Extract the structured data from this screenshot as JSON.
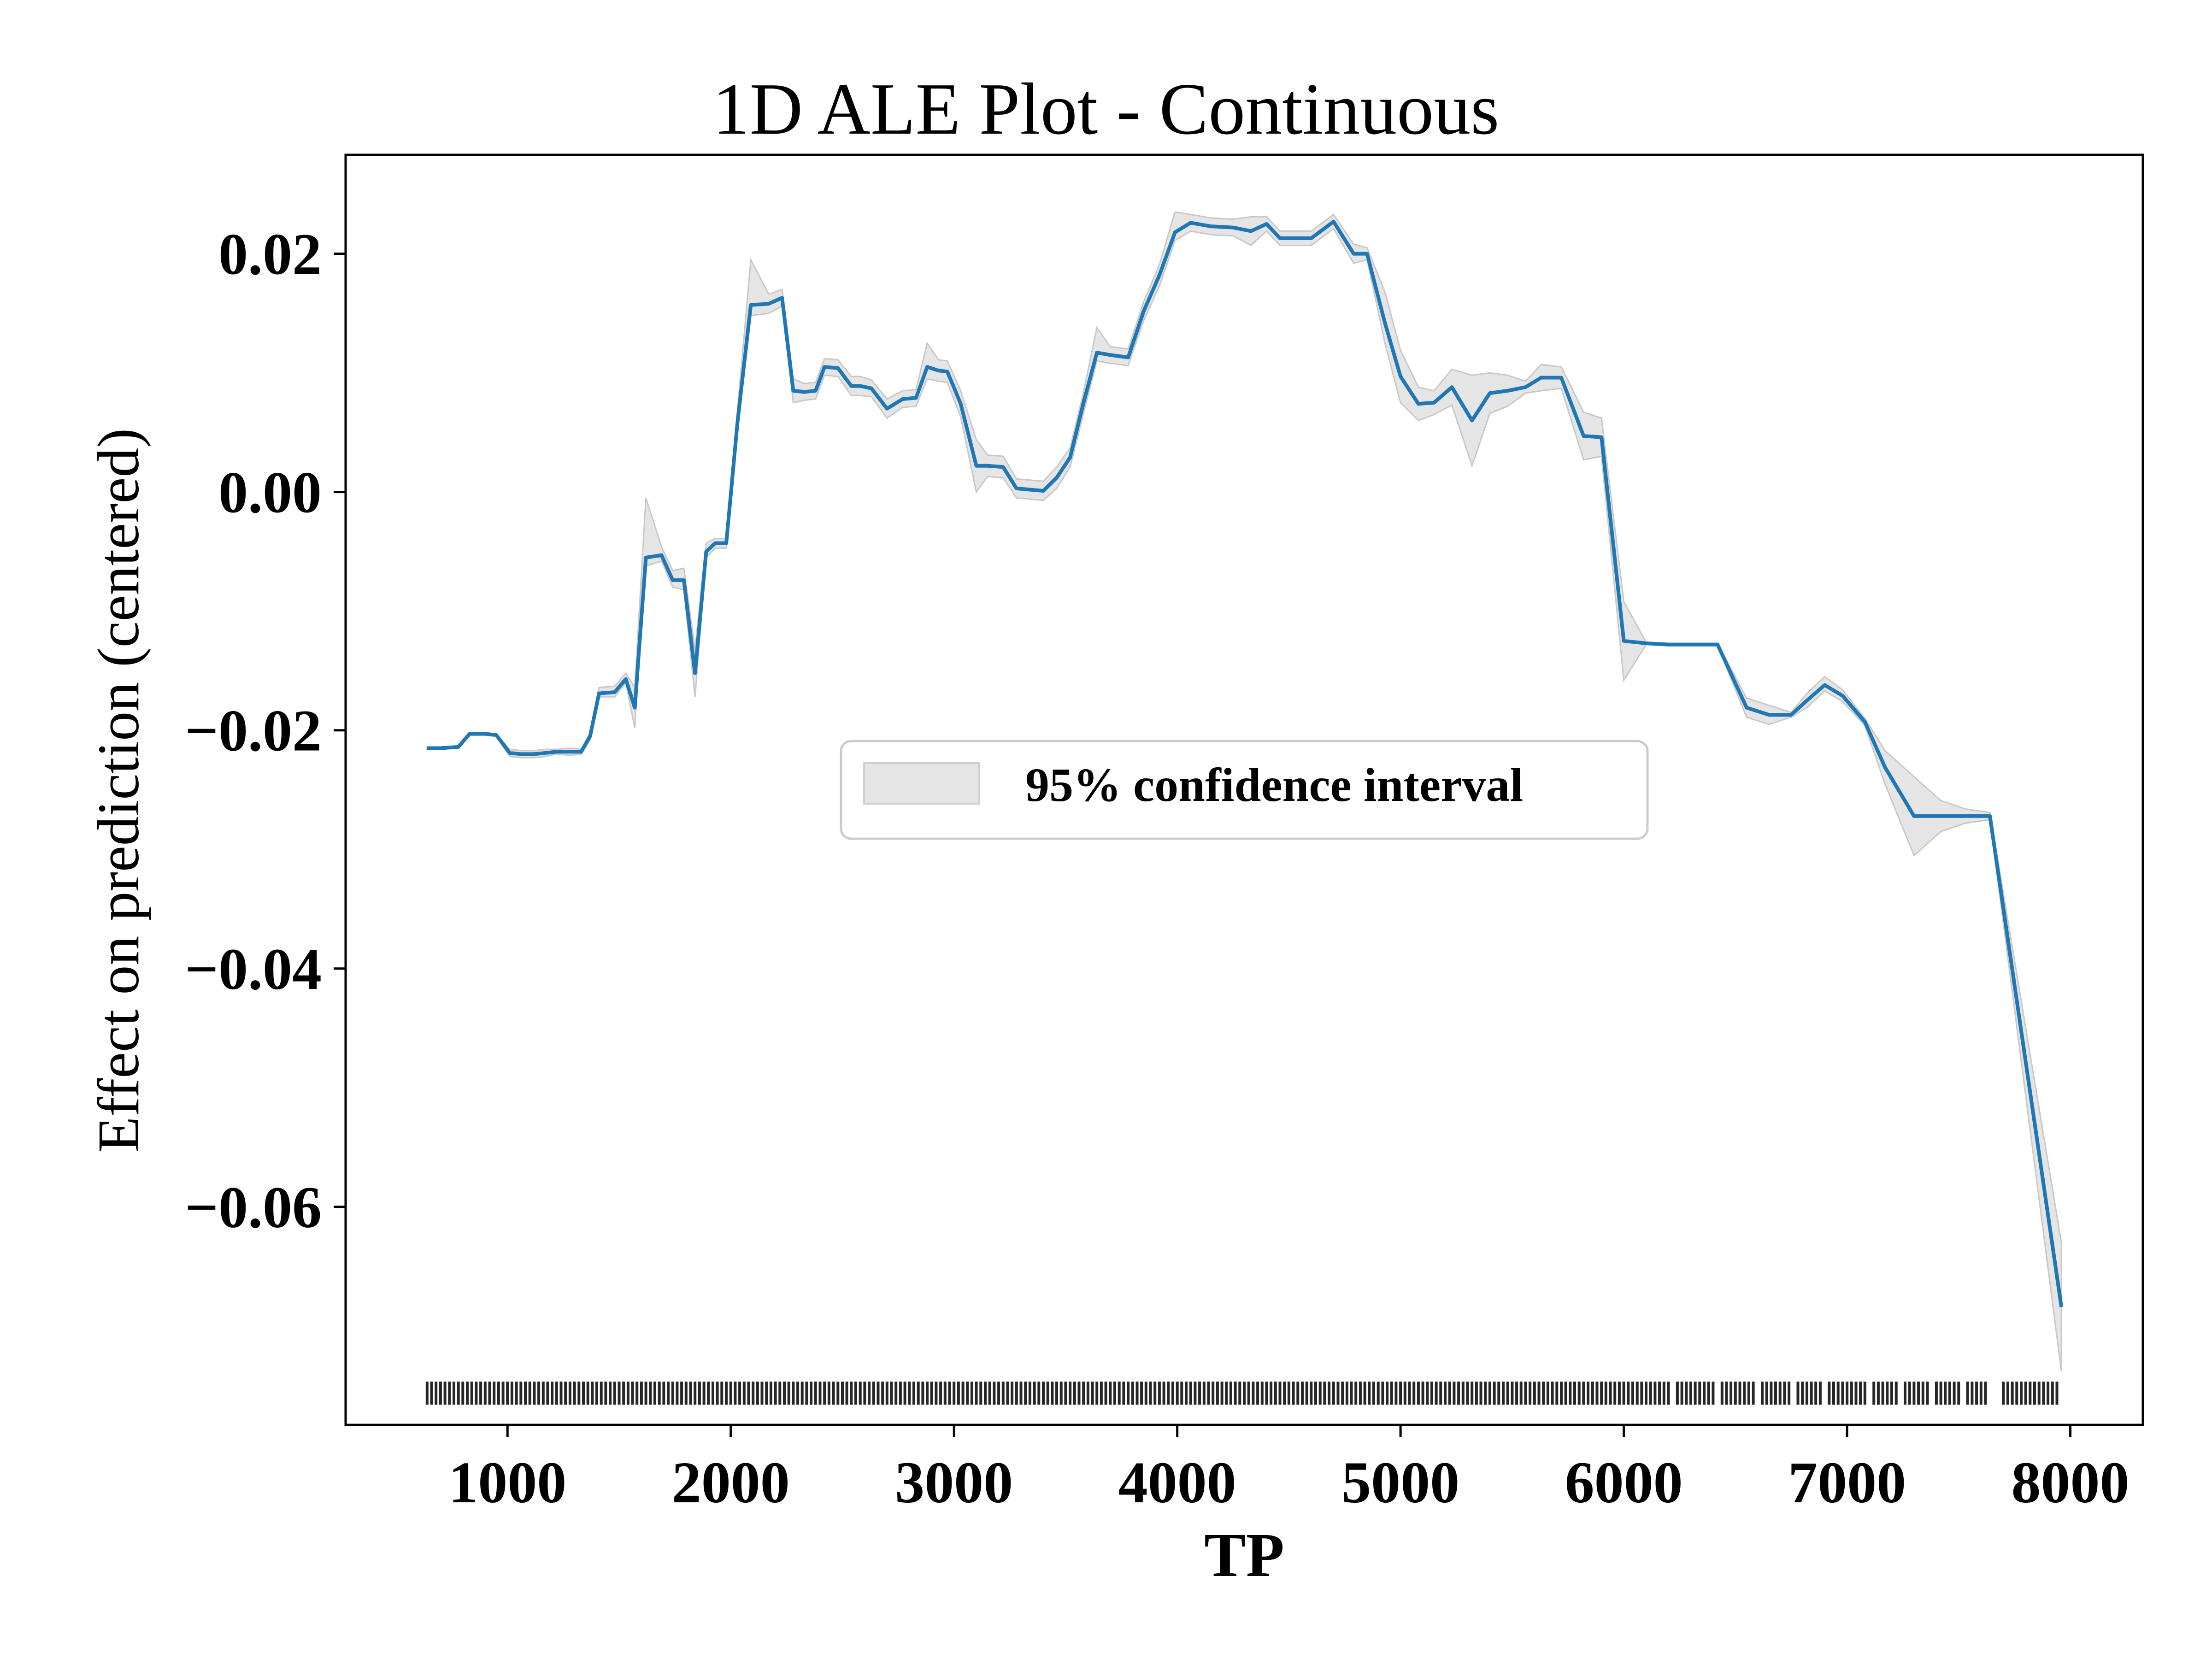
{
  "chart_data": {
    "type": "line",
    "title": "1D ALE Plot - Continuous",
    "xlabel": "TP",
    "ylabel": "Effect on prediction (centered)",
    "xlim": [
      275,
      8325
    ],
    "ylim": [
      -0.0783,
      0.0283
    ],
    "x_ticks": [
      1000,
      2000,
      3000,
      4000,
      5000,
      6000,
      7000,
      8000
    ],
    "x_tick_labels": [
      "1000",
      "2000",
      "3000",
      "4000",
      "5000",
      "6000",
      "7000",
      "8000"
    ],
    "y_ticks": [
      0.02,
      0.0,
      -0.02,
      -0.04,
      -0.06
    ],
    "y_tick_labels": [
      "0.02",
      "0.00",
      "−0.02",
      "−0.04",
      "−0.06"
    ],
    "grid": false,
    "legend": {
      "position": "center",
      "entries": [
        "95% confidence interval"
      ]
    },
    "colors": {
      "line": "#1f77b4",
      "band": "#d3d3d3",
      "rug": "#000000"
    },
    "series": [
      {
        "x": [
          640,
          700,
          780,
          830,
          900,
          950,
          1010,
          1060,
          1120,
          1170,
          1220,
          1280,
          1330,
          1370,
          1410,
          1480,
          1530,
          1570,
          1620,
          1690,
          1740,
          1790,
          1840,
          1890,
          1930,
          1980,
          2030,
          2090,
          2170,
          2230,
          2280,
          2330,
          2380,
          2420,
          2480,
          2540,
          2580,
          2630,
          2700,
          2770,
          2830,
          2880,
          2930,
          2970,
          3030,
          3100,
          3150,
          3220,
          3280,
          3340,
          3400,
          3460,
          3520,
          3580,
          3640,
          3700,
          3780,
          3850,
          3920,
          3990,
          4060,
          4150,
          4250,
          4330,
          4400,
          4460,
          4530,
          4600,
          4700,
          4790,
          4850,
          4930,
          5000,
          5080,
          5150,
          5230,
          5320,
          5400,
          5480,
          5560,
          5630,
          5720,
          5820,
          5900,
          6000,
          6100,
          6200,
          6300,
          6420,
          6550,
          6650,
          6750,
          6820,
          6900,
          6980,
          7080,
          7170,
          7300,
          7420,
          7530,
          7640,
          7960
        ],
        "y": [
          -0.0215,
          -0.0215,
          -0.0214,
          -0.0203,
          -0.0203,
          -0.0204,
          -0.0219,
          -0.022,
          -0.022,
          -0.0219,
          -0.0218,
          -0.0218,
          -0.0218,
          -0.0205,
          -0.0169,
          -0.0168,
          -0.0157,
          -0.0181,
          -0.0055,
          -0.0053,
          -0.0074,
          -0.0074,
          -0.0152,
          -0.005,
          -0.0043,
          -0.0043,
          0.0058,
          0.0157,
          0.0158,
          0.0163,
          0.0085,
          0.0084,
          0.0085,
          0.0105,
          0.0104,
          0.0089,
          0.0089,
          0.0087,
          0.007,
          0.0078,
          0.0079,
          0.0105,
          0.0102,
          0.0101,
          0.0074,
          0.0022,
          0.0022,
          0.0021,
          0.0003,
          0.0002,
          0.0001,
          0.0012,
          0.0029,
          0.0075,
          0.0117,
          0.0115,
          0.0113,
          0.0152,
          0.0182,
          0.0218,
          0.0226,
          0.0223,
          0.0222,
          0.0219,
          0.0225,
          0.0213,
          0.0213,
          0.0213,
          0.0227,
          0.02,
          0.02,
          0.0142,
          0.0097,
          0.0074,
          0.0075,
          0.0088,
          0.006,
          0.0083,
          0.0085,
          0.0088,
          0.0096,
          0.0096,
          0.0047,
          0.0046,
          -0.0125,
          -0.0127,
          -0.0128,
          -0.0128,
          -0.0128,
          -0.0181,
          -0.0187,
          -0.0187,
          -0.0175,
          -0.0162,
          -0.0171,
          -0.0193,
          -0.0231,
          -0.0272,
          -0.0272,
          -0.0272,
          -0.0272,
          -0.0684
        ],
        "lower": [
          -0.0216,
          -0.0216,
          -0.0215,
          -0.0204,
          -0.0204,
          -0.0205,
          -0.0222,
          -0.0223,
          -0.0223,
          -0.0222,
          -0.022,
          -0.0221,
          -0.022,
          -0.0208,
          -0.0172,
          -0.0172,
          -0.016,
          -0.0198,
          -0.0062,
          -0.0058,
          -0.008,
          -0.0082,
          -0.0172,
          -0.0055,
          -0.0047,
          -0.0047,
          0.005,
          0.0148,
          0.015,
          0.0156,
          0.0075,
          0.0077,
          0.0078,
          0.0098,
          0.0097,
          0.0081,
          0.0081,
          0.008,
          0.0062,
          0.0071,
          0.0072,
          0.0095,
          0.0093,
          0.0092,
          0.0063,
          0.0,
          0.0013,
          0.0012,
          -0.0005,
          -0.0006,
          -0.0007,
          0.0003,
          0.0021,
          0.0066,
          0.011,
          0.0108,
          0.0106,
          0.0144,
          0.0173,
          0.0211,
          0.0219,
          0.0216,
          0.0215,
          0.0207,
          0.0219,
          0.0207,
          0.0207,
          0.0207,
          0.0221,
          0.0192,
          0.0195,
          0.0125,
          0.0075,
          0.006,
          0.0065,
          0.0073,
          0.0022,
          0.0066,
          0.0072,
          0.0083,
          0.0085,
          0.0087,
          0.0027,
          0.003,
          -0.0158,
          -0.0128,
          -0.0129,
          -0.0129,
          -0.0129,
          -0.0189,
          -0.0195,
          -0.0189,
          -0.0181,
          -0.0167,
          -0.0176,
          -0.0196,
          -0.0245,
          -0.0305,
          -0.0285,
          -0.0278,
          -0.0275,
          -0.0738
        ],
        "upper": [
          -0.0214,
          -0.0214,
          -0.0213,
          -0.0202,
          -0.0202,
          -0.0203,
          -0.0216,
          -0.0217,
          -0.0217,
          -0.0216,
          -0.0216,
          -0.0215,
          -0.0216,
          -0.0202,
          -0.0164,
          -0.0163,
          -0.0152,
          -0.0164,
          -0.0005,
          -0.0046,
          -0.0066,
          -0.0064,
          -0.0132,
          -0.0043,
          -0.0039,
          -0.0039,
          0.0068,
          0.0195,
          0.0166,
          0.017,
          0.0095,
          0.0091,
          0.0092,
          0.0112,
          0.0111,
          0.0097,
          0.0097,
          0.0094,
          0.0078,
          0.0085,
          0.0086,
          0.0125,
          0.0111,
          0.011,
          0.0085,
          0.0044,
          0.0031,
          0.003,
          0.0011,
          0.001,
          0.0009,
          0.0021,
          0.0037,
          0.0084,
          0.0138,
          0.0122,
          0.012,
          0.016,
          0.0191,
          0.0235,
          0.0233,
          0.023,
          0.0229,
          0.0231,
          0.0231,
          0.0219,
          0.0219,
          0.0219,
          0.0233,
          0.0208,
          0.0205,
          0.0168,
          0.0119,
          0.0088,
          0.0085,
          0.0103,
          0.0098,
          0.01,
          0.0098,
          0.0093,
          0.0107,
          0.0105,
          0.0067,
          0.0062,
          -0.0092,
          -0.0126,
          -0.0127,
          -0.0127,
          -0.0127,
          -0.0173,
          -0.0179,
          -0.0185,
          -0.0169,
          -0.0155,
          -0.0166,
          -0.019,
          -0.0217,
          -0.0239,
          -0.0259,
          -0.0266,
          -0.0269,
          -0.063
        ]
      }
    ],
    "rug": [
      640,
      660,
      680,
      700,
      720,
      740,
      760,
      780,
      800,
      820,
      840,
      860,
      880,
      900,
      920,
      940,
      960,
      980,
      1000,
      1020,
      1040,
      1060,
      1080,
      1100,
      1120,
      1140,
      1160,
      1180,
      1200,
      1220,
      1240,
      1260,
      1280,
      1300,
      1320,
      1340,
      1360,
      1380,
      1400,
      1420,
      1440,
      1460,
      1480,
      1500,
      1520,
      1540,
      1560,
      1580,
      1600,
      1620,
      1640,
      1660,
      1680,
      1700,
      1720,
      1740,
      1760,
      1780,
      1800,
      1820,
      1840,
      1860,
      1880,
      1900,
      1920,
      1940,
      1960,
      1980,
      2000,
      2020,
      2040,
      2060,
      2080,
      2100,
      2120,
      2140,
      2160,
      2180,
      2200,
      2220,
      2240,
      2260,
      2280,
      2300,
      2320,
      2340,
      2360,
      2380,
      2400,
      2420,
      2440,
      2460,
      2480,
      2500,
      2520,
      2540,
      2560,
      2580,
      2600,
      2620,
      2640,
      2660,
      2680,
      2700,
      2720,
      2740,
      2760,
      2780,
      2800,
      2820,
      2840,
      2860,
      2880,
      2900,
      2920,
      2940,
      2960,
      2980,
      3000,
      3020,
      3040,
      3060,
      3080,
      3100,
      3120,
      3140,
      3160,
      3180,
      3200,
      3220,
      3240,
      3260,
      3280,
      3300,
      3320,
      3340,
      3360,
      3380,
      3400,
      3420,
      3440,
      3460,
      3480,
      3500,
      3520,
      3540,
      3560,
      3580,
      3600,
      3620,
      3640,
      3660,
      3680,
      3700,
      3720,
      3740,
      3760,
      3780,
      3800,
      3820,
      3840,
      3860,
      3880,
      3900,
      3920,
      3940,
      3960,
      3980,
      4000,
      4020,
      4040,
      4060,
      4080,
      4100,
      4120,
      4140,
      4160,
      4180,
      4200,
      4220,
      4240,
      4260,
      4280,
      4300,
      4320,
      4340,
      4360,
      4380,
      4400,
      4420,
      4440,
      4460,
      4480,
      4500,
      4520,
      4540,
      4560,
      4580,
      4600,
      4620,
      4640,
      4660,
      4680,
      4700,
      4720,
      4740,
      4760,
      4780,
      4800,
      4820,
      4840,
      4860,
      4880,
      4900,
      4920,
      4940,
      4960,
      4980,
      5000,
      5020,
      5040,
      5060,
      5080,
      5100,
      5120,
      5140,
      5160,
      5180,
      5200,
      5220,
      5240,
      5260,
      5280,
      5300,
      5320,
      5340,
      5360,
      5380,
      5400,
      5420,
      5440,
      5460,
      5480,
      5500,
      5520,
      5540,
      5560,
      5580,
      5600,
      5620,
      5640,
      5660,
      5680,
      5700,
      5720,
      5740,
      5760,
      5780,
      5800,
      5820,
      5840,
      5860,
      5880,
      5900,
      5920,
      5940,
      5960,
      5980,
      6000,
      6020,
      6040,
      6060,
      6080,
      6100,
      6120,
      6140,
      6160,
      6180,
      6200,
      6240,
      6260,
      6280,
      6300,
      6320,
      6340,
      6360,
      6380,
      6400,
      6440,
      6460,
      6480,
      6500,
      6520,
      6540,
      6560,
      6580,
      6620,
      6640,
      6660,
      6680,
      6700,
      6720,
      6740,
      6780,
      6800,
      6820,
      6840,
      6860,
      6880,
      6920,
      6940,
      6960,
      6980,
      7000,
      7020,
      7040,
      7060,
      7080,
      7120,
      7140,
      7160,
      7180,
      7200,
      7220,
      7260,
      7280,
      7300,
      7320,
      7340,
      7360,
      7400,
      7420,
      7440,
      7460,
      7480,
      7500,
      7540,
      7560,
      7580,
      7600,
      7620,
      7700,
      7720,
      7740,
      7760,
      7780,
      7800,
      7820,
      7840,
      7860,
      7880,
      7900,
      7920,
      7940
    ]
  }
}
